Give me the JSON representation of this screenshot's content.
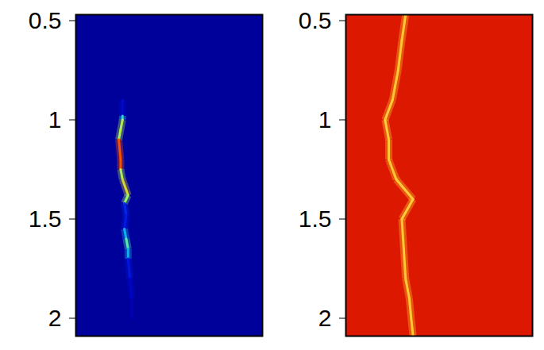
{
  "chart_data": [
    {
      "type": "heatmap",
      "color": "jet",
      "ylim": [
        0.47,
        2.09
      ],
      "yticks": [
        0.5,
        1,
        1.5,
        2
      ],
      "xlim": [
        0,
        1
      ],
      "tick_labels": "y",
      "zlim": [
        0,
        1
      ],
      "background": 0.02,
      "ridge": [
        {
          "x": 0.25,
          "y": 0.9,
          "value": 0.04
        },
        {
          "x": 0.25,
          "y": 0.98,
          "value": 0.2
        },
        {
          "x": 0.25,
          "y": 1.0,
          "value": 0.6
        },
        {
          "x": 0.24,
          "y": 1.05,
          "value": 0.5
        },
        {
          "x": 0.23,
          "y": 1.1,
          "value": 0.6
        },
        {
          "x": 0.24,
          "y": 1.2,
          "value": 0.9
        },
        {
          "x": 0.24,
          "y": 1.25,
          "value": 0.6
        },
        {
          "x": 0.25,
          "y": 1.3,
          "value": 0.5
        },
        {
          "x": 0.28,
          "y": 1.38,
          "value": 0.7
        },
        {
          "x": 0.26,
          "y": 1.42,
          "value": 0.35
        },
        {
          "x": 0.27,
          "y": 1.48,
          "value": 0.04
        },
        {
          "x": 0.26,
          "y": 1.55,
          "value": 0.3
        },
        {
          "x": 0.27,
          "y": 1.6,
          "value": 0.4
        },
        {
          "x": 0.28,
          "y": 1.65,
          "value": 0.5
        },
        {
          "x": 0.28,
          "y": 1.7,
          "value": 0.2
        },
        {
          "x": 0.29,
          "y": 1.8,
          "value": 0.12
        },
        {
          "x": 0.3,
          "y": 1.9,
          "value": 0.08
        },
        {
          "x": 0.3,
          "y": 2.0,
          "value": 0.04
        }
      ]
    },
    {
      "type": "heatmap",
      "color": "hot",
      "ylim": [
        0.47,
        2.09
      ],
      "yticks": [
        0.5,
        1,
        1.5,
        2
      ],
      "xlim": [
        0,
        1
      ],
      "tick_labels": "y",
      "zlim": [
        0,
        1
      ],
      "background": 0.4,
      "ridge": [
        {
          "x": 0.32,
          "y": 0.47,
          "value": 0.78
        },
        {
          "x": 0.3,
          "y": 0.6,
          "value": 0.78
        },
        {
          "x": 0.28,
          "y": 0.75,
          "value": 0.78
        },
        {
          "x": 0.25,
          "y": 0.9,
          "value": 0.78
        },
        {
          "x": 0.21,
          "y": 1.0,
          "value": 0.8
        },
        {
          "x": 0.23,
          "y": 1.1,
          "value": 0.78
        },
        {
          "x": 0.23,
          "y": 1.2,
          "value": 0.78
        },
        {
          "x": 0.27,
          "y": 1.3,
          "value": 0.78
        },
        {
          "x": 0.36,
          "y": 1.4,
          "value": 0.8
        },
        {
          "x": 0.3,
          "y": 1.5,
          "value": 0.78
        },
        {
          "x": 0.31,
          "y": 1.65,
          "value": 0.78
        },
        {
          "x": 0.32,
          "y": 1.8,
          "value": 0.78
        },
        {
          "x": 0.34,
          "y": 1.9,
          "value": 0.78
        },
        {
          "x": 0.35,
          "y": 2.0,
          "value": 0.78
        },
        {
          "x": 0.36,
          "y": 2.09,
          "value": 0.78
        }
      ]
    }
  ]
}
